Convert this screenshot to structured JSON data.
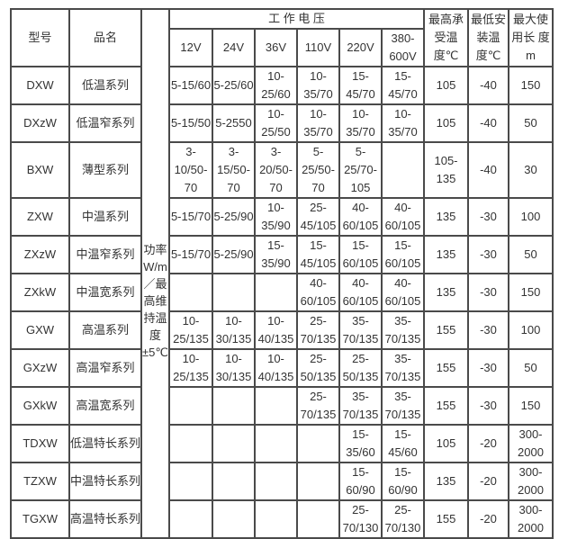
{
  "headers": {
    "model": "型号",
    "name": "品名",
    "power": "功率W/m／最高维持温度±5℃",
    "voltage_group": "工 作 电 压",
    "voltages": [
      "12V",
      "24V",
      "36V",
      "110V",
      "220V",
      "380-600V"
    ],
    "max_temp": "最高承受温度℃",
    "min_install": "最低安装温度℃",
    "max_length": "最大使用长 度m"
  },
  "rows": [
    {
      "model": "DXW",
      "name": "低温系列",
      "values": [
        "5-15/60",
        "5-25/60",
        "10-25/60",
        "10-35/70",
        "15-45/70",
        "15-45/70"
      ],
      "max_temp": "105",
      "min_install": "-40",
      "max_length": "150"
    },
    {
      "model": "DXzW",
      "name": "低温窄系列",
      "values": [
        "5-15/50",
        "5-2550",
        "10-25/50",
        "10-35/70",
        "10-35/70",
        "10-35/70"
      ],
      "max_temp": "105",
      "min_install": "-40",
      "max_length": "50"
    },
    {
      "model": "BXW",
      "name": "薄型系列",
      "values": [
        "3-10/50-70",
        "3-15/50-70",
        "3-20/50-70",
        "5-25/50-70",
        "5-25/70-105",
        ""
      ],
      "max_temp": "105-135",
      "min_install": "-40",
      "max_length": "30"
    },
    {
      "model": "ZXW",
      "name": "中温系列",
      "values": [
        "5-15/70",
        "5-25/90",
        "10-35/90",
        "25-45/105",
        "40-60/105",
        "40-60/105"
      ],
      "max_temp": "135",
      "min_install": "-30",
      "max_length": "100"
    },
    {
      "model": "ZXzW",
      "name": "中温窄系列",
      "values": [
        "5-15/70",
        "5-25/90",
        "15-35/90",
        "15-45/105",
        "15-60/105",
        "15-60/105"
      ],
      "max_temp": "135",
      "min_install": "-30",
      "max_length": "50"
    },
    {
      "model": "ZXkW",
      "name": "中温宽系列",
      "values": [
        "",
        "",
        "",
        "40-60/105",
        "40-60/105",
        "40-60/105"
      ],
      "max_temp": "135",
      "min_install": "-30",
      "max_length": "150"
    },
    {
      "model": "GXW",
      "name": "高温系列",
      "values": [
        "10-25/135",
        "10-30/135",
        "10-40/135",
        "25-70/135",
        "35-70/135",
        "35-70/135"
      ],
      "max_temp": "155",
      "min_install": "-30",
      "max_length": "100"
    },
    {
      "model": "GXzW",
      "name": "高温窄系列",
      "values": [
        "10-25/135",
        "10-30/135",
        "10-40/135",
        "25-50/135",
        "25-50/135",
        "35-70/135"
      ],
      "max_temp": "155",
      "min_install": "-30",
      "max_length": "50"
    },
    {
      "model": "GXkW",
      "name": "高温宽系列",
      "values": [
        "",
        "",
        "",
        "25-70/135",
        "35-70/135",
        "35-70/135"
      ],
      "max_temp": "155",
      "min_install": "-30",
      "max_length": "150"
    },
    {
      "model": "TDXW",
      "name": "低温特长系列",
      "values": [
        "",
        "",
        "",
        "",
        "15-35/60",
        "15-45/60"
      ],
      "max_temp": "105",
      "min_install": "-20",
      "max_length": "300-2000"
    },
    {
      "model": "TZXW",
      "name": "中温特长系列",
      "values": [
        "",
        "",
        "",
        "",
        "15-60/90",
        "15-60/90"
      ],
      "max_temp": "135",
      "min_install": "-20",
      "max_length": "300-2000"
    },
    {
      "model": "TGXW",
      "name": "高温特长系列",
      "values": [
        "",
        "",
        "",
        "",
        "25-70/130",
        "25-70/130"
      ],
      "max_temp": "155",
      "min_install": "-20",
      "max_length": "300-2000"
    }
  ]
}
